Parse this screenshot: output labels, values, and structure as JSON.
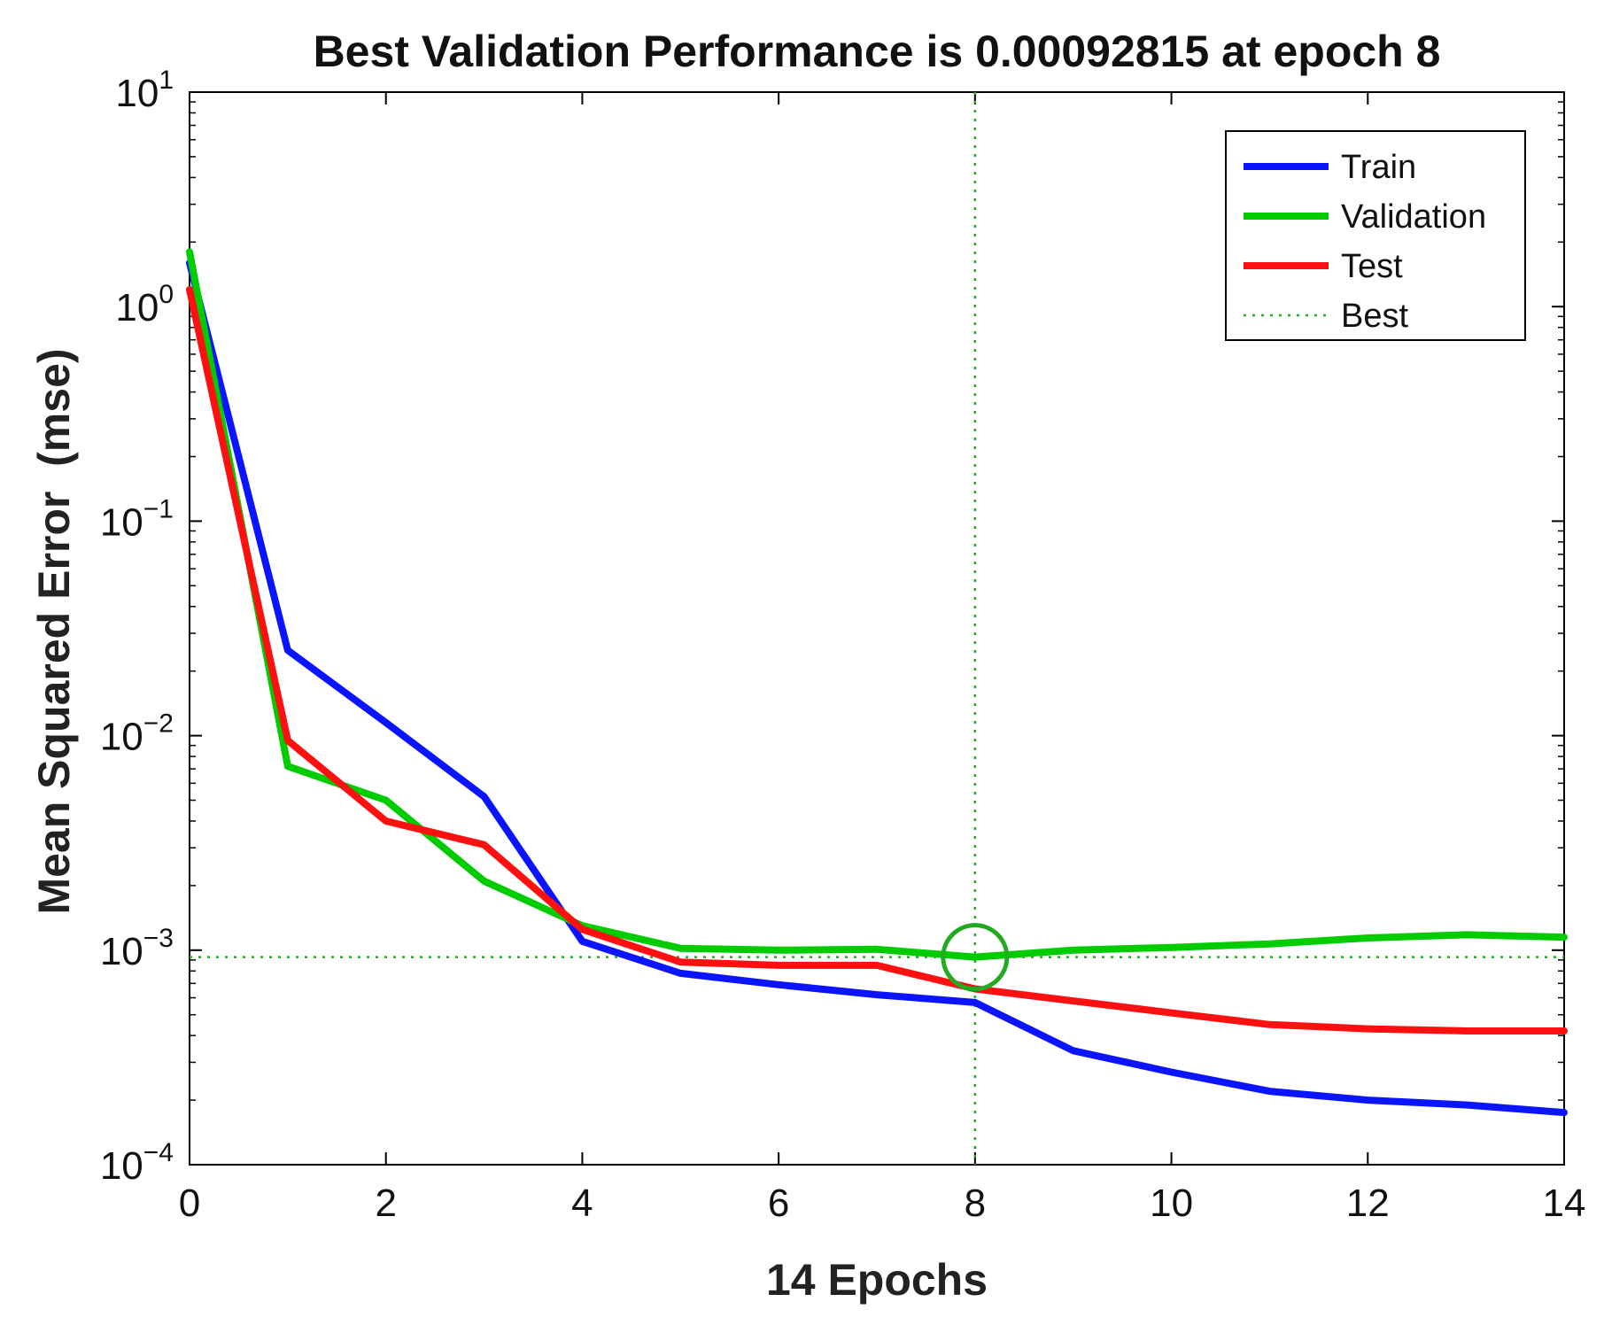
{
  "chart_data": {
    "type": "line",
    "title": "Best Validation Performance is 0.00092815 at epoch 8",
    "xlabel": "14 Epochs",
    "ylabel": "Mean Squared Error  (mse)",
    "xscale": "linear",
    "yscale": "log",
    "xlim": [
      0,
      14
    ],
    "ylim": [
      0.0001,
      10
    ],
    "xticks": [
      0,
      2,
      4,
      6,
      8,
      10,
      12,
      14
    ],
    "xtick_labels": [
      "0",
      "2",
      "4",
      "6",
      "8",
      "10",
      "12",
      "14"
    ],
    "yticks": [
      {
        "value": 0.0001,
        "base": "10",
        "exp": "−4"
      },
      {
        "value": 0.001,
        "base": "10",
        "exp": "−3"
      },
      {
        "value": 0.01,
        "base": "10",
        "exp": "−2"
      },
      {
        "value": 0.1,
        "base": "10",
        "exp": "−1"
      },
      {
        "value": 1,
        "base": "10",
        "exp": "0"
      },
      {
        "value": 10,
        "base": "10",
        "exp": "1"
      }
    ],
    "x": [
      0,
      1,
      2,
      3,
      4,
      5,
      6,
      7,
      8,
      9,
      10,
      11,
      12,
      13,
      14
    ],
    "series": [
      {
        "name": "Train",
        "color": "#0a14ff",
        "values": [
          1.6,
          0.025,
          0.0115,
          0.0052,
          0.0011,
          0.00078,
          0.00069,
          0.00062,
          0.00057,
          0.00034,
          0.00027,
          0.00022,
          0.0002,
          0.00019,
          0.000175
        ]
      },
      {
        "name": "Validation",
        "color": "#00cc00",
        "values": [
          1.8,
          0.0072,
          0.005,
          0.0021,
          0.0013,
          0.00102,
          0.001,
          0.00101,
          0.00092815,
          0.001,
          0.00103,
          0.00107,
          0.00114,
          0.00118,
          0.00115
        ]
      },
      {
        "name": "Test",
        "color": "#ff1010",
        "values": [
          1.2,
          0.0095,
          0.004,
          0.0031,
          0.00125,
          0.00088,
          0.00085,
          0.00085,
          0.00066,
          0.00058,
          0.00051,
          0.00045,
          0.00043,
          0.00042,
          0.00042
        ]
      }
    ],
    "best": {
      "name": "Best",
      "epoch": 8,
      "value": 0.00092815,
      "color": "#22aa22"
    },
    "legend": {
      "position": "top-right",
      "entries": [
        "Train",
        "Validation",
        "Test",
        "Best"
      ]
    },
    "grid": false
  }
}
